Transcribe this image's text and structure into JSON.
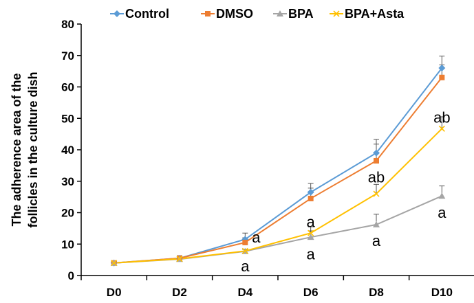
{
  "chart_data": {
    "type": "line",
    "title": "",
    "xlabel": "",
    "ylabel_lines": [
      "The adherence area of the",
      "follicles in the culture dish"
    ],
    "categories": [
      "D0",
      "D2",
      "D4",
      "D6",
      "D8",
      "D10"
    ],
    "ylim": [
      0,
      80
    ],
    "yticks": [
      "0",
      "10",
      "20",
      "30",
      "40",
      "50",
      "60",
      "70",
      "80"
    ],
    "grid": false,
    "legend_position": "top",
    "series": [
      {
        "name": "Control",
        "color": "#5B9BD5",
        "marker": "diamond",
        "values": [
          4,
          5.5,
          11.5,
          26.5,
          39,
          66
        ],
        "errors": [
          0.5,
          0.8,
          2.0,
          2.8,
          4.3,
          3.8
        ]
      },
      {
        "name": "DMSO",
        "color": "#ED7D31",
        "marker": "square",
        "values": [
          4,
          5.5,
          10.5,
          24.5,
          36.5,
          63
        ],
        "errors": [
          0.5,
          0.8,
          1.5,
          3.3,
          5.3,
          4.0
        ]
      },
      {
        "name": "BPA",
        "color": "#A5A5A5",
        "marker": "triangle",
        "values": [
          4,
          5.2,
          7.7,
          12.2,
          16.2,
          25.3
        ],
        "errors": [
          0.4,
          0.6,
          0.6,
          2.0,
          3.3,
          3.2
        ]
      },
      {
        "name": "BPA+Asta",
        "color": "#FFC000",
        "marker": "x",
        "values": [
          4,
          5.3,
          7.8,
          13.5,
          26,
          46.7
        ],
        "errors": [
          0.4,
          0.7,
          0.6,
          2.0,
          3.0,
          3.8
        ]
      }
    ],
    "annotations": [
      {
        "text": "a",
        "category": "D4",
        "y": 12.2,
        "dx": 16
      },
      {
        "text": "a",
        "category": "D4",
        "y": 3.1,
        "dx": 0
      },
      {
        "text": "a",
        "category": "D6",
        "y": 17.2,
        "dx": 0
      },
      {
        "text": "a",
        "category": "D6",
        "y": 6.9,
        "dx": 0
      },
      {
        "text": "ab",
        "category": "D8",
        "y": 31.4,
        "dx": 0
      },
      {
        "text": "a",
        "category": "D8",
        "y": 11.1,
        "dx": 0
      },
      {
        "text": "ab",
        "category": "D10",
        "y": 50.4,
        "dx": 0
      },
      {
        "text": "a",
        "category": "D10",
        "y": 20.1,
        "dx": 0
      }
    ]
  }
}
